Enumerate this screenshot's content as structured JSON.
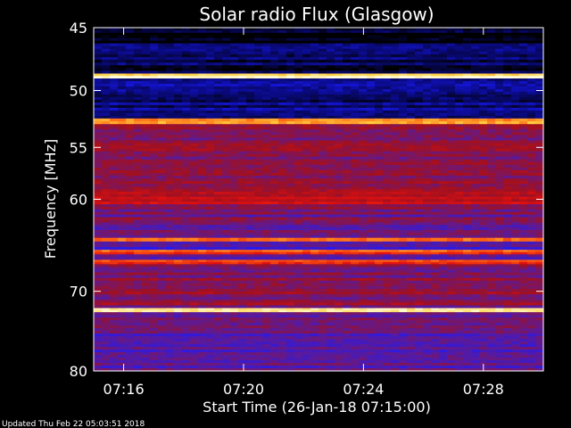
{
  "chart_data": {
    "type": "heatmap",
    "title": "Solar radio Flux (Glasgow)",
    "xlabel": "Start Time (26-Jan-18 07:15:00)",
    "ylabel": "Frequency [MHz]",
    "footer": "Updated Thu Feb 22 05:03:51 2018",
    "x_range_minutes": [
      0,
      15.0
    ],
    "x_ticks": [
      {
        "label": "07:16",
        "minutes": 1
      },
      {
        "label": "07:20",
        "minutes": 5
      },
      {
        "label": "07:24",
        "minutes": 9
      },
      {
        "label": "07:28",
        "minutes": 13
      }
    ],
    "y_scale": "log",
    "y_range_mhz": [
      45,
      80
    ],
    "y_ticks": [
      {
        "label": "45",
        "mhz": 45
      },
      {
        "label": "50",
        "mhz": 50
      },
      {
        "label": "55",
        "mhz": 55
      },
      {
        "label": "60",
        "mhz": 60
      },
      {
        "label": "70",
        "mhz": 70
      },
      {
        "label": "80",
        "mhz": 80
      }
    ],
    "frequency_bands": [
      {
        "from_mhz": 45.0,
        "to_mhz": 46.2,
        "level": 0.02
      },
      {
        "from_mhz": 46.2,
        "to_mhz": 48.6,
        "level": 0.08
      },
      {
        "from_mhz": 48.6,
        "to_mhz": 49.0,
        "level": 0.95
      },
      {
        "from_mhz": 49.0,
        "to_mhz": 52.4,
        "level": 0.12
      },
      {
        "from_mhz": 52.4,
        "to_mhz": 52.9,
        "level": 0.85
      },
      {
        "from_mhz": 52.9,
        "to_mhz": 59.0,
        "level": 0.45
      },
      {
        "from_mhz": 59.0,
        "to_mhz": 60.5,
        "level": 0.55
      },
      {
        "from_mhz": 60.5,
        "to_mhz": 64.0,
        "level": 0.42
      },
      {
        "from_mhz": 64.0,
        "to_mhz": 64.4,
        "level": 0.75
      },
      {
        "from_mhz": 64.4,
        "to_mhz": 65.3,
        "level": 0.35
      },
      {
        "from_mhz": 65.3,
        "to_mhz": 65.8,
        "level": 0.7
      },
      {
        "from_mhz": 65.8,
        "to_mhz": 66.4,
        "level": 0.4
      },
      {
        "from_mhz": 66.4,
        "to_mhz": 66.9,
        "level": 0.7
      },
      {
        "from_mhz": 66.9,
        "to_mhz": 72.0,
        "level": 0.45
      },
      {
        "from_mhz": 72.0,
        "to_mhz": 72.5,
        "level": 0.98
      },
      {
        "from_mhz": 72.5,
        "to_mhz": 80.0,
        "level": 0.38
      }
    ],
    "colorscale": [
      "#000000",
      "#0a0a80",
      "#1a1aff",
      "#5a1a9a",
      "#a01020",
      "#e01010",
      "#ff6010",
      "#ffd040",
      "#ffffe0"
    ]
  }
}
